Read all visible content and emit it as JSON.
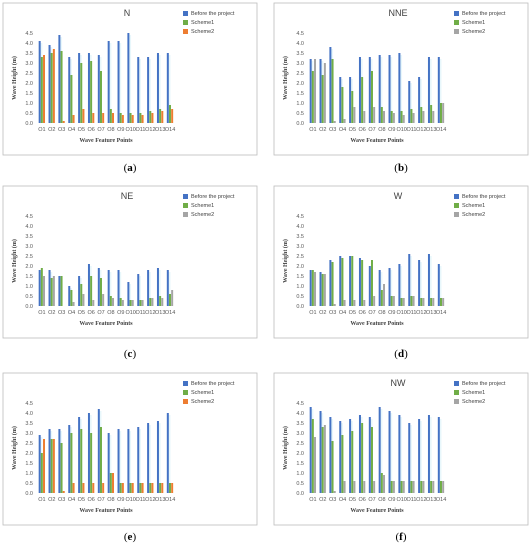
{
  "chart_data": [
    {
      "type": "bar",
      "title": "N",
      "caption": "(a)",
      "xlabel": "Wave Feature Points",
      "ylabel": "Wave Height (m)",
      "ylim": [
        0,
        4.5
      ],
      "yticks": [
        0,
        0.5,
        1.0,
        1.5,
        2.0,
        2.5,
        3.0,
        3.5,
        4.0,
        4.5
      ],
      "ytick_labels": [
        "0.0",
        "0.5",
        "1.0",
        "1.5",
        "2.0",
        "2.5",
        "3.0",
        "3.5",
        "4.0",
        "4.5"
      ],
      "categories": [
        "O1",
        "O2",
        "O3",
        "O4",
        "O5",
        "O6",
        "O7",
        "O8",
        "O9",
        "O10",
        "O11",
        "O12",
        "O13",
        "O14"
      ],
      "legend_position": "top-right",
      "series": [
        {
          "name": "Before the project",
          "color": "#4472c4",
          "values": [
            4.1,
            3.9,
            4.4,
            3.3,
            3.5,
            3.5,
            3.4,
            4.1,
            4.1,
            4.5,
            3.3,
            3.3,
            3.5,
            3.5
          ]
        },
        {
          "name": "Scheme1",
          "color": "#70ad47",
          "values": [
            3.3,
            3.5,
            3.6,
            2.4,
            3.0,
            3.1,
            2.6,
            0.7,
            0.5,
            0.5,
            0.5,
            0.6,
            0.7,
            0.9
          ]
        },
        {
          "name": "Scheme2",
          "color": "#ed7d31",
          "values": [
            3.4,
            3.7,
            0.1,
            0.4,
            0.7,
            0.5,
            0.5,
            0.5,
            0.4,
            0.4,
            0.4,
            0.5,
            0.6,
            0.7
          ]
        }
      ]
    },
    {
      "type": "bar",
      "title": "NNE",
      "caption": "(b)",
      "xlabel": "Wave Feature Points",
      "ylabel": "Wave Height (m)",
      "ylim": [
        0,
        4.5
      ],
      "yticks": [
        0,
        0.5,
        1.0,
        1.5,
        2.0,
        2.5,
        3.0,
        3.5,
        4.0,
        4.5
      ],
      "ytick_labels": [
        "0.0",
        "0.5",
        "1.0",
        "1.5",
        "2.0",
        "2.5",
        "3.0",
        "3.5",
        "4.0",
        "4.5"
      ],
      "categories": [
        "O1",
        "O2",
        "O3",
        "O4",
        "O5",
        "O6",
        "O7",
        "O8",
        "O9",
        "O10",
        "O11",
        "O12",
        "O13",
        "O14"
      ],
      "legend_position": "top-right",
      "series": [
        {
          "name": "Before the project",
          "color": "#4472c4",
          "values": [
            3.2,
            3.2,
            3.8,
            2.3,
            2.3,
            3.3,
            3.3,
            3.4,
            3.4,
            3.5,
            2.1,
            2.3,
            3.3,
            3.3
          ]
        },
        {
          "name": "Scheme1",
          "color": "#70ad47",
          "values": [
            2.6,
            2.4,
            3.2,
            1.8,
            1.6,
            2.3,
            2.6,
            0.8,
            0.6,
            0.6,
            0.7,
            0.8,
            0.9,
            1.0
          ]
        },
        {
          "name": "Scheme2",
          "color": "#a5a5a5",
          "values": [
            3.2,
            3.0,
            0.1,
            0.2,
            0.8,
            0.6,
            0.8,
            0.6,
            0.5,
            0.4,
            0.5,
            0.6,
            0.6,
            1.0
          ]
        }
      ]
    },
    {
      "type": "bar",
      "title": "NE",
      "caption": "(c)",
      "xlabel": "Wave Feature Points",
      "ylabel": "Wave Height (m)",
      "ylim": [
        0,
        4.5
      ],
      "yticks": [
        0,
        0.5,
        1.0,
        1.5,
        2.0,
        2.5,
        3.0,
        3.5,
        4.0,
        4.5
      ],
      "ytick_labels": [
        "0.0",
        "0.5",
        "1.0",
        "1.5",
        "2.0",
        "2.5",
        "3.0",
        "3.5",
        "4.0",
        "4.5"
      ],
      "categories": [
        "O1",
        "O2",
        "O3",
        "O4",
        "O5",
        "O6",
        "O7",
        "O8",
        "O9",
        "O10",
        "O11",
        "O12",
        "O13",
        "O14"
      ],
      "legend_position": "top-right",
      "series": [
        {
          "name": "Before the project",
          "color": "#4472c4",
          "values": [
            1.8,
            1.8,
            1.5,
            1.0,
            1.5,
            2.1,
            1.9,
            1.8,
            1.8,
            1.2,
            1.6,
            1.8,
            1.9,
            1.8
          ]
        },
        {
          "name": "Scheme1",
          "color": "#70ad47",
          "values": [
            1.9,
            1.4,
            1.5,
            0.8,
            1.1,
            1.5,
            1.4,
            0.5,
            0.4,
            0.3,
            0.3,
            0.4,
            0.5,
            0.6
          ]
        },
        {
          "name": "Scheme2",
          "color": "#a5a5a5",
          "values": [
            1.5,
            1.5,
            0.0,
            0.2,
            0.6,
            0.3,
            0.6,
            0.4,
            0.3,
            0.3,
            0.3,
            0.4,
            0.4,
            0.8
          ]
        }
      ]
    },
    {
      "type": "bar",
      "title": "W",
      "caption": "(d)",
      "xlabel": "Wave Feature Points",
      "ylabel": "Wave Height (m)",
      "ylim": [
        0,
        4.5
      ],
      "yticks": [
        0,
        0.5,
        1.0,
        1.5,
        2.0,
        2.5,
        3.0,
        3.5,
        4.0,
        4.5
      ],
      "ytick_labels": [
        "0.0",
        "0.5",
        "1.0",
        "1.5",
        "2.0",
        "2.5",
        "3.0",
        "3.5",
        "4.0",
        "4.5"
      ],
      "categories": [
        "O1",
        "O2",
        "O3",
        "O4",
        "O5",
        "O6",
        "O7",
        "O8",
        "O9",
        "O10",
        "O11",
        "O12",
        "O13",
        "O14"
      ],
      "legend_position": "top-right",
      "series": [
        {
          "name": "Before the project",
          "color": "#4472c4",
          "values": [
            1.8,
            1.7,
            2.3,
            2.5,
            2.5,
            2.4,
            2.0,
            1.8,
            1.9,
            2.1,
            2.6,
            2.3,
            2.6,
            2.1
          ]
        },
        {
          "name": "Scheme1",
          "color": "#70ad47",
          "values": [
            1.8,
            1.6,
            2.2,
            2.4,
            2.5,
            2.3,
            2.3,
            0.8,
            0.5,
            0.4,
            0.5,
            0.4,
            0.4,
            0.4
          ]
        },
        {
          "name": "Scheme2",
          "color": "#a5a5a5",
          "values": [
            1.7,
            1.6,
            0.1,
            0.3,
            0.3,
            0.3,
            0.5,
            1.1,
            0.5,
            0.4,
            0.5,
            0.4,
            0.4,
            0.4
          ]
        }
      ]
    },
    {
      "type": "bar",
      "title": "",
      "caption": "(e)",
      "xlabel": "Wave Feature Points",
      "ylabel": "Wave Height (m)",
      "ylim": [
        0,
        4.5
      ],
      "yticks": [
        0,
        0.5,
        1.0,
        1.5,
        2.0,
        2.5,
        3.0,
        3.5,
        4.0,
        4.5
      ],
      "ytick_labels": [
        "0.0",
        "0.5",
        "1.0",
        "1.5",
        "2.0",
        "2.5",
        "3.0",
        "3.5",
        "4.0",
        "4.5"
      ],
      "categories": [
        "O1",
        "O2",
        "O3",
        "O4",
        "O5",
        "O6",
        "O7",
        "O8",
        "O9",
        "O10",
        "O11",
        "O12",
        "O13",
        "O14"
      ],
      "legend_position": "top-right",
      "series": [
        {
          "name": "Before the project",
          "color": "#4472c4",
          "values": [
            2.9,
            3.2,
            3.2,
            3.4,
            3.8,
            4.0,
            4.2,
            3.0,
            3.2,
            3.2,
            3.3,
            3.5,
            3.6,
            4.0
          ]
        },
        {
          "name": "Scheme1",
          "color": "#70ad47",
          "values": [
            2.0,
            2.7,
            2.5,
            3.0,
            3.2,
            3.0,
            3.3,
            1.0,
            0.5,
            0.5,
            0.5,
            0.5,
            0.5,
            0.5
          ]
        },
        {
          "name": "Scheme2",
          "color": "#ed7d31",
          "values": [
            2.7,
            2.7,
            0.1,
            0.5,
            0.5,
            0.5,
            0.5,
            1.0,
            0.5,
            0.5,
            0.5,
            0.5,
            0.5,
            0.5
          ]
        }
      ]
    },
    {
      "type": "bar",
      "title": "NW",
      "caption": "(f)",
      "xlabel": "Wave Feature Points",
      "ylabel": "Wave Height (m)",
      "ylim": [
        0,
        4.5
      ],
      "yticks": [
        0,
        0.5,
        1.0,
        1.5,
        2.0,
        2.5,
        3.0,
        3.5,
        4.0,
        4.5
      ],
      "ytick_labels": [
        "0.0",
        "0.5",
        "1.0",
        "1.5",
        "2.0",
        "2.5",
        "3.0",
        "3.5",
        "4.0",
        "4.5"
      ],
      "categories": [
        "O1",
        "O2",
        "O3",
        "O4",
        "O5",
        "O6",
        "O7",
        "O8",
        "O9",
        "O10",
        "O11",
        "O12",
        "O13",
        "O14"
      ],
      "legend_position": "top-right",
      "series": [
        {
          "name": "Before the project",
          "color": "#4472c4",
          "values": [
            4.3,
            4.1,
            3.8,
            3.6,
            3.7,
            3.9,
            3.8,
            4.3,
            4.1,
            3.9,
            3.5,
            3.7,
            3.9,
            3.8
          ]
        },
        {
          "name": "Scheme1",
          "color": "#70ad47",
          "values": [
            3.7,
            3.3,
            2.6,
            2.9,
            3.1,
            3.5,
            3.3,
            1.0,
            0.6,
            0.6,
            0.6,
            0.6,
            0.6,
            0.6
          ]
        },
        {
          "name": "Scheme2",
          "color": "#a5a5a5",
          "values": [
            2.8,
            3.4,
            0.1,
            0.6,
            0.6,
            0.6,
            0.6,
            0.9,
            0.6,
            0.6,
            0.6,
            0.6,
            0.6,
            0.6
          ]
        }
      ]
    }
  ]
}
